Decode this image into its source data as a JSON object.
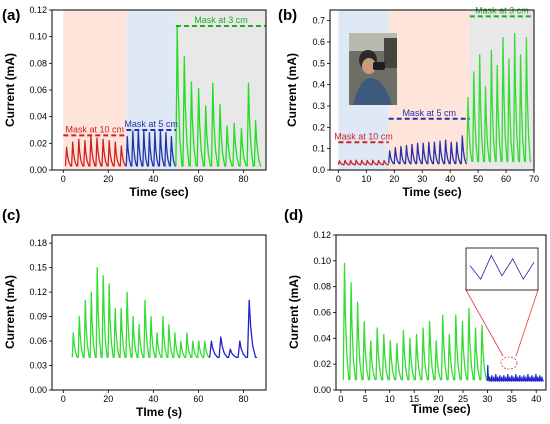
{
  "chart_data": [
    {
      "panel": "(a)",
      "type": "line",
      "xlabel": "Time (sec)",
      "ylabel": "Current (mA)",
      "xlim": [
        -5,
        90
      ],
      "ylim": [
        0,
        0.12
      ],
      "xticks": [
        0,
        20,
        40,
        60,
        80
      ],
      "yticks": [
        0.0,
        0.02,
        0.04,
        0.06,
        0.08,
        0.1,
        0.12
      ],
      "ytick_decimals": 2,
      "regions": [
        {
          "x0": 0,
          "x1": 28,
          "color": "#ffe4dc"
        },
        {
          "x0": 28,
          "x1": 50,
          "color": "#dfe8f5"
        },
        {
          "x0": 50,
          "x1": 90,
          "color": "#e8e8e8"
        }
      ],
      "annotations": [
        {
          "text": "Mask at 10 cm",
          "x0": 0,
          "x1": 28,
          "y": 0.026,
          "color": "#cc2222"
        },
        {
          "text": "Mask at 5 cm",
          "x0": 28,
          "x1": 50,
          "y": 0.03,
          "color": "#2233aa"
        },
        {
          "text": "Mask at 3 cm",
          "x0": 50,
          "x1": 90,
          "y": 0.108,
          "color": "#22aa22"
        }
      ],
      "series": [
        {
          "color": "#cc2222",
          "peaks": {
            "start": 1,
            "end": 28,
            "count": 10,
            "base": 0.003,
            "heights": [
              0.014,
              0.018,
              0.02,
              0.019,
              0.022,
              0.021,
              0.02,
              0.019,
              0.018,
              0.015
            ]
          }
        },
        {
          "color": "#2233aa",
          "peaks": {
            "start": 28,
            "end": 50,
            "count": 9,
            "base": 0.003,
            "heights": [
              0.022,
              0.026,
              0.027,
              0.026,
              0.025,
              0.026,
              0.027,
              0.025,
              0.022
            ]
          }
        },
        {
          "color": "#22dd22",
          "peaks": {
            "start": 50,
            "end": 88,
            "count": 12,
            "base": 0.003,
            "heights": [
              0.105,
              0.082,
              0.063,
              0.058,
              0.045,
              0.062,
              0.046,
              0.03,
              0.032,
              0.028,
              0.062,
              0.034
            ]
          }
        }
      ]
    },
    {
      "panel": "(b)",
      "type": "line",
      "xlabel": "Time (sec)",
      "ylabel": "Current (mA)",
      "xlim": [
        -3,
        70
      ],
      "ylim": [
        0,
        0.75
      ],
      "xticks": [
        0,
        10,
        20,
        30,
        40,
        50,
        60,
        70
      ],
      "yticks": [
        0.0,
        0.1,
        0.2,
        0.3,
        0.4,
        0.5,
        0.6,
        0.7
      ],
      "ytick_decimals": 1,
      "regions": [
        {
          "x0": 0,
          "x1": 18,
          "color": "#dfe8f5"
        },
        {
          "x0": 18,
          "x1": 47,
          "color": "#ffe4dc"
        },
        {
          "x0": 47,
          "x1": 70,
          "color": "#e8e8e8"
        }
      ],
      "annotations": [
        {
          "text": "Mask at 10 cm",
          "x0": 0,
          "x1": 18,
          "y": 0.13,
          "color": "#cc2222"
        },
        {
          "text": "Mask at 5 cm",
          "x0": 18,
          "x1": 47,
          "y": 0.24,
          "color": "#2233aa"
        },
        {
          "text": "Mask at 3 cm",
          "x0": 47,
          "x1": 70,
          "y": 0.72,
          "color": "#22aa22"
        }
      ],
      "series": [
        {
          "color": "#cc2222",
          "peaks": {
            "start": 0,
            "end": 18,
            "count": 9,
            "base": 0.025,
            "heights": [
              0.018,
              0.02,
              0.02,
              0.021,
              0.02,
              0.02,
              0.021,
              0.02,
              0.019
            ]
          }
        },
        {
          "color": "#2233aa",
          "peaks": {
            "start": 18,
            "end": 46,
            "count": 14,
            "base": 0.03,
            "heights": [
              0.06,
              0.075,
              0.08,
              0.085,
              0.09,
              0.095,
              0.095,
              0.1,
              0.1,
              0.105,
              0.11,
              0.1,
              0.1,
              0.13
            ]
          }
        },
        {
          "color": "#33dd33",
          "peaks": {
            "start": 46,
            "end": 69,
            "count": 11,
            "base": 0.04,
            "heights": [
              0.3,
              0.42,
              0.5,
              0.35,
              0.52,
              0.45,
              0.58,
              0.48,
              0.6,
              0.5,
              0.58
            ]
          }
        }
      ]
    },
    {
      "panel": "(c)",
      "type": "line",
      "xlabel": "TIme (s)",
      "ylabel": "Current (mA)",
      "xlim": [
        -5,
        90
      ],
      "ylim": [
        0,
        0.19
      ],
      "xticks": [
        0,
        20,
        40,
        60,
        80
      ],
      "yticks": [
        0.0,
        0.03,
        0.06,
        0.09,
        0.12,
        0.15,
        0.18
      ],
      "ytick_decimals": 2,
      "regions": [],
      "annotations": [],
      "series": [
        {
          "color": "#33dd33",
          "peaks": {
            "start": 4,
            "end": 65,
            "count": 23,
            "base": 0.04,
            "heights": [
              0.03,
              0.05,
              0.07,
              0.08,
              0.11,
              0.1,
              0.09,
              0.06,
              0.06,
              0.08,
              0.05,
              0.04,
              0.07,
              0.05,
              0.03,
              0.05,
              0.04,
              0.03,
              0.02,
              0.03,
              0.02,
              0.02,
              0.02
            ]
          }
        },
        {
          "color": "#2222cc",
          "peaks": {
            "start": 65,
            "end": 86,
            "count": 5,
            "base": 0.04,
            "heights": [
              0.02,
              0.025,
              0.01,
              0.02,
              0.07
            ]
          }
        }
      ]
    },
    {
      "panel": "(d)",
      "type": "line",
      "xlabel": "Time (sec)",
      "ylabel": "Current (mA)",
      "xlim": [
        -1,
        42
      ],
      "ylim": [
        0,
        0.12
      ],
      "xticks": [
        0,
        5,
        10,
        15,
        20,
        25,
        30,
        35,
        40
      ],
      "yticks": [
        0.0,
        0.02,
        0.04,
        0.06,
        0.08,
        0.1,
        0.12
      ],
      "ytick_decimals": 2,
      "regions": [],
      "annotations": [],
      "series": [
        {
          "color": "#33dd33",
          "peaks": {
            "start": 0.5,
            "end": 30,
            "count": 22,
            "base": 0.008,
            "heights": [
              0.09,
              0.075,
              0.06,
              0.045,
              0.03,
              0.04,
              0.035,
              0.03,
              0.028,
              0.038,
              0.032,
              0.035,
              0.04,
              0.045,
              0.03,
              0.05,
              0.035,
              0.05,
              0.045,
              0.055,
              0.04,
              0.042
            ]
          }
        },
        {
          "color": "#2222cc",
          "peaks": {
            "start": 30,
            "end": 41.5,
            "count": 28,
            "base": 0.007,
            "heights": [
              0.012,
              0.003,
              0.004,
              0.003,
              0.005,
              0.003,
              0.004,
              0.003,
              0.004,
              0.003,
              0.005,
              0.003,
              0.004,
              0.003,
              0.005,
              0.003,
              0.004,
              0.003,
              0.004,
              0.003,
              0.005,
              0.003,
              0.004,
              0.003,
              0.005,
              0.003,
              0.004,
              0.003
            ]
          }
        }
      ],
      "inset_peaks": [
        0.6,
        0.2,
        0.9,
        0.3,
        0.8,
        0.2,
        0.7
      ]
    }
  ]
}
